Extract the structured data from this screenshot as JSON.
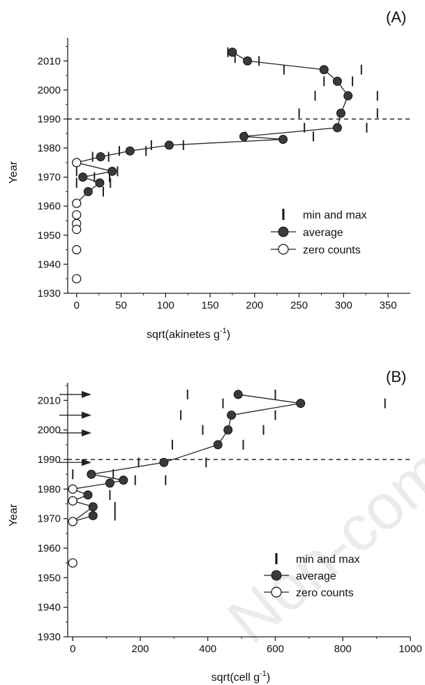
{
  "watermark": "Non-commer",
  "chart_data": [
    {
      "type": "line",
      "panel_label": "(A)",
      "xlabel": "sqrt(akinetes g",
      "xlabel_sup": "-1",
      "xlabel_close": ")",
      "ylabel": "Year",
      "xlim": [
        -10,
        375
      ],
      "ylim": [
        1930,
        2018
      ],
      "xticks": [
        0,
        50,
        100,
        150,
        200,
        250,
        300,
        350
      ],
      "yticks": [
        1930,
        1940,
        1950,
        1960,
        1970,
        1980,
        1990,
        2000,
        2010
      ],
      "reference_line_year": 1990,
      "legend": {
        "position": "center-right",
        "entries": [
          "min and max",
          "average",
          "zero counts"
        ]
      },
      "series": [
        {
          "name": "average",
          "style": "filled",
          "points": [
            [
              175,
              2013
            ],
            [
              192,
              2010
            ],
            [
              278,
              2007
            ],
            [
              293,
              2003
            ],
            [
              305,
              1998
            ],
            [
              297,
              1992
            ],
            [
              293,
              1987
            ],
            [
              188,
              1984
            ],
            [
              232,
              1983
            ],
            [
              104,
              1981
            ],
            [
              60,
              1979
            ],
            [
              27,
              1977
            ],
            [
              0,
              1975
            ],
            [
              40,
              1972
            ],
            [
              7,
              1970
            ],
            [
              26,
              1968
            ],
            [
              13,
              1965
            ],
            [
              0,
              1961
            ]
          ]
        },
        {
          "name": "zero counts",
          "style": "open",
          "points": [
            [
              0,
              1975
            ],
            [
              0,
              1961
            ],
            [
              0,
              1957
            ],
            [
              0,
              1954
            ],
            [
              0,
              1952
            ],
            [
              0,
              1945
            ],
            [
              0,
              1935
            ]
          ]
        },
        {
          "name": "min and max",
          "style": "tick",
          "points": [
            [
              170,
              2013
            ],
            [
              178,
              2011
            ],
            [
              205,
              2010
            ],
            [
              233,
              2007
            ],
            [
              320,
              2007
            ],
            [
              278,
              2003
            ],
            [
              310,
              2003
            ],
            [
              268,
              1998
            ],
            [
              338,
              1998
            ],
            [
              250,
              1992
            ],
            [
              338,
              1992
            ],
            [
              326,
              1987
            ],
            [
              256,
              1987
            ],
            [
              190,
              1984
            ],
            [
              266,
              1984
            ],
            [
              120,
              1981
            ],
            [
              84,
              1981
            ],
            [
              78,
              1979
            ],
            [
              48,
              1979
            ],
            [
              36,
              1977
            ],
            [
              18,
              1977
            ],
            [
              46,
              1972
            ],
            [
              37,
              1970
            ],
            [
              20,
              1970
            ],
            [
              38,
              1968
            ],
            [
              0,
              1968
            ],
            [
              30,
              1965
            ],
            [
              0,
              1972
            ]
          ]
        }
      ]
    },
    {
      "type": "line",
      "panel_label": "(B)",
      "xlabel": "sqrt(cell g",
      "xlabel_sup": "-1",
      "xlabel_close": ")",
      "ylabel": "Year",
      "xlim": [
        -15,
        1000
      ],
      "ylim": [
        1930,
        2016
      ],
      "xticks": [
        0,
        200,
        400,
        600,
        800,
        1000
      ],
      "yticks": [
        1930,
        1940,
        1950,
        1960,
        1970,
        1980,
        1990,
        2000,
        2010
      ],
      "reference_line_year": 1990,
      "arrow_years": [
        2012,
        2005,
        1999,
        1989
      ],
      "legend": {
        "position": "lower-right",
        "entries": [
          "min and max",
          "average",
          "zero counts"
        ]
      },
      "series": [
        {
          "name": "average",
          "style": "filled",
          "points": [
            [
              490,
              2012
            ],
            [
              675,
              2009
            ],
            [
              470,
              2005
            ],
            [
              460,
              2000
            ],
            [
              430,
              1995
            ],
            [
              270,
              1989
            ],
            [
              55,
              1985
            ],
            [
              150,
              1983
            ],
            [
              110,
              1982
            ],
            [
              0,
              1980
            ],
            [
              45,
              1978
            ],
            [
              0,
              1976
            ],
            [
              60,
              1974
            ],
            [
              0,
              1969
            ],
            [
              60,
              1971
            ]
          ]
        },
        {
          "name": "zero counts",
          "style": "open",
          "points": [
            [
              0,
              1980
            ],
            [
              0,
              1976
            ],
            [
              0,
              1969
            ],
            [
              0,
              1955
            ]
          ]
        },
        {
          "name": "min and max",
          "style": "tick",
          "points": [
            [
              340,
              2012
            ],
            [
              600,
              2012
            ],
            [
              445,
              2009
            ],
            [
              925,
              2009
            ],
            [
              320,
              2005
            ],
            [
              600,
              2005
            ],
            [
              385,
              2000
            ],
            [
              565,
              2000
            ],
            [
              295,
              1995
            ],
            [
              505,
              1995
            ],
            [
              195,
              1989
            ],
            [
              395,
              1989
            ],
            [
              275,
              1983
            ],
            [
              185,
              1983
            ],
            [
              0,
              1985
            ],
            [
              120,
              1985
            ],
            [
              110,
              1978
            ],
            [
              125,
              1974
            ],
            [
              125,
              1971
            ]
          ]
        }
      ]
    }
  ]
}
